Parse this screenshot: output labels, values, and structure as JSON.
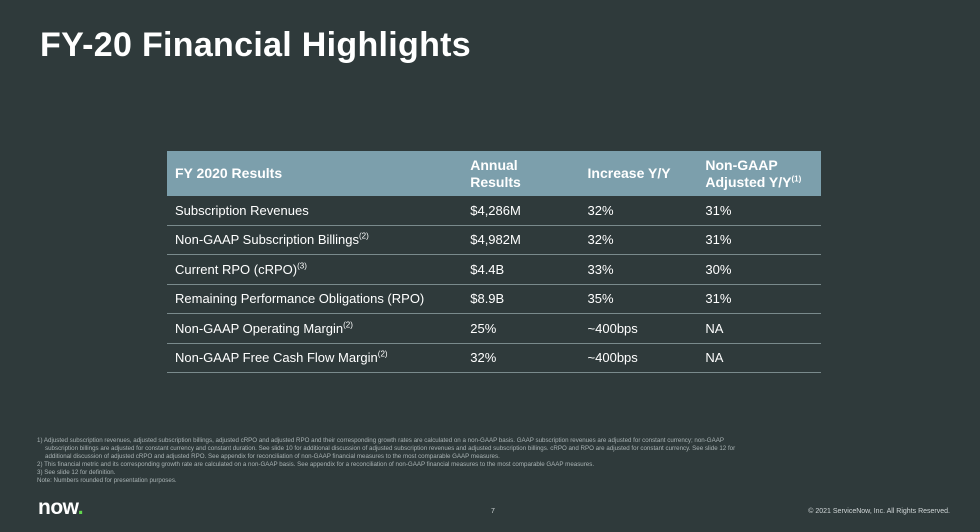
{
  "slide": {
    "title": "FY-20 Financial Highlights",
    "page_number": "7",
    "copyright": "© 2021 ServiceNow, Inc. All Rights Reserved.",
    "logo_text": "now",
    "logo_dot": ".",
    "colors": {
      "background": "#2f3a3b",
      "header": "#7c9fac",
      "logo_accent": "#62d84e"
    }
  },
  "table": {
    "headers": {
      "c1": "FY 2020 Results",
      "c2": "Annual Results",
      "c3": "Increase Y/Y",
      "c4_line1": "Non-GAAP",
      "c4_line2": "Adjusted Y/Y",
      "c4_sup": "(1)"
    },
    "rows": [
      {
        "metric": "Subscription Revenues",
        "sup": "",
        "annual": "$4,286M",
        "increase": "32%",
        "adjusted": "31%"
      },
      {
        "metric": "Non-GAAP Subscription Billings",
        "sup": "(2)",
        "annual": "$4,982M",
        "increase": "32%",
        "adjusted": "31%"
      },
      {
        "metric": "Current RPO (cRPO)",
        "sup": "(3)",
        "annual": "$4.4B",
        "increase": "33%",
        "adjusted": "30%"
      },
      {
        "metric": "Remaining Performance Obligations (RPO)",
        "sup": "",
        "annual": "$8.9B",
        "increase": "35%",
        "adjusted": "31%"
      },
      {
        "metric": "Non-GAAP Operating Margin",
        "sup": "(2)",
        "annual": "25%",
        "increase": "~400bps",
        "adjusted": "NA"
      },
      {
        "metric": "Non-GAAP Free Cash Flow Margin",
        "sup": "(2)",
        "annual": "32%",
        "increase": "~400bps",
        "adjusted": "NA"
      }
    ]
  },
  "footnotes": {
    "n1a": "1) Adjusted subscription revenues, adjusted subscription billings, adjusted cRPO and adjusted RPO and their corresponding growth rates are calculated on a non-GAAP basis. GAAP subscription revenues are adjusted for constant currency; non-GAAP",
    "n1b": "subscription billings are adjusted for constant currency and constant duration. See slide 10 for additional discussion of adjusted subscription revenues and adjusted subscription billings. cRPO and RPO are adjusted for constant currency. See slide 12 for",
    "n1c": "additional discussion of adjusted cRPO and adjusted RPO. See appendix for reconciliation of non-GAAP financial measures to the most comparable GAAP measures.",
    "n2": "2) This financial metric and its corresponding growth rate are calculated on a non-GAAP basis. See appendix for a reconciliation of non-GAAP financial measures to the most comparable GAAP measures.",
    "n3": "3) See slide 12 for definition.",
    "note": "Note: Numbers rounded for presentation purposes."
  }
}
